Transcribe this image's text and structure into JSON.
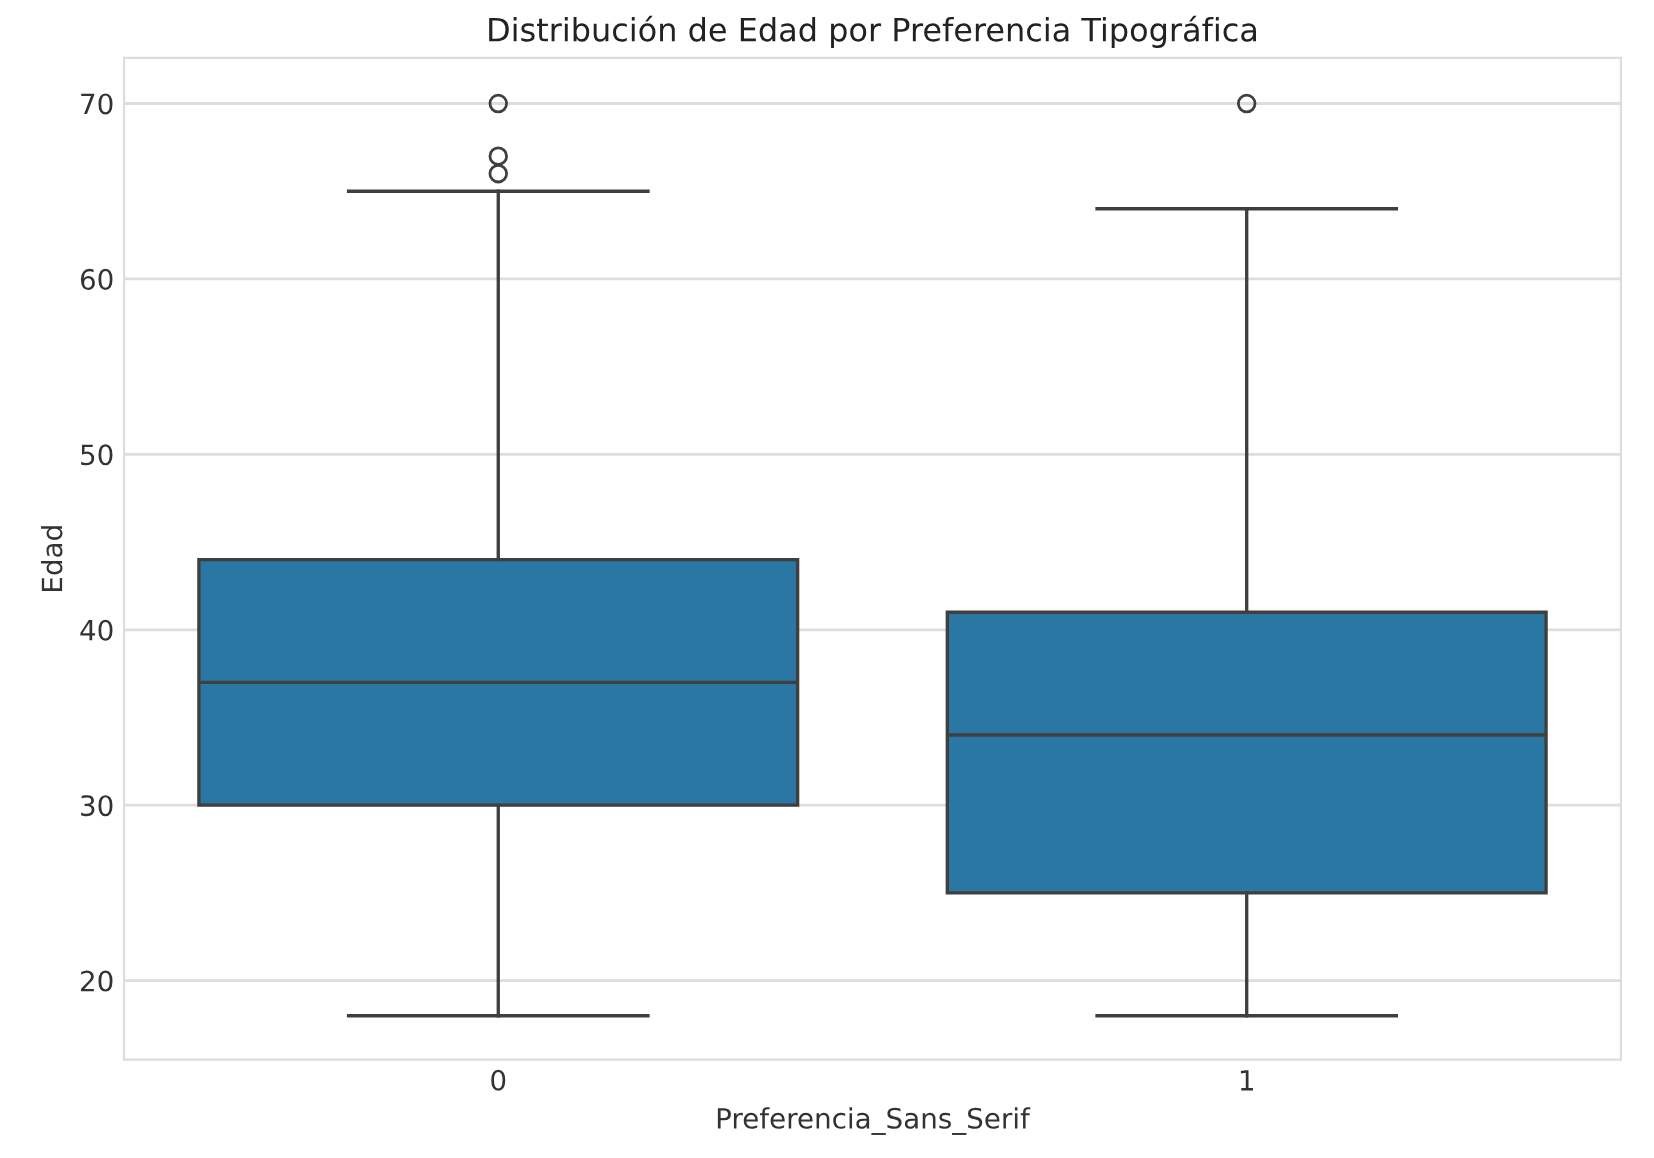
{
  "chart_data": {
    "type": "box",
    "title": "Distribución de Edad por Preferencia Tipográfica",
    "xlabel": "Preferencia_Sans_Serif",
    "ylabel": "Edad",
    "categories": [
      "0",
      "1"
    ],
    "boxes": [
      {
        "low": 18,
        "q1": 30,
        "median": 37,
        "q3": 44,
        "high": 65,
        "outliers": [
          66,
          67,
          70
        ]
      },
      {
        "low": 18,
        "q1": 25,
        "median": 34,
        "q3": 41,
        "high": 64,
        "outliers": [
          70
        ]
      }
    ],
    "color": "#2a77a4",
    "ylim": [
      15.5,
      72.6
    ],
    "yticks": [
      20,
      30,
      40,
      50,
      60,
      70
    ],
    "grid": "y"
  }
}
